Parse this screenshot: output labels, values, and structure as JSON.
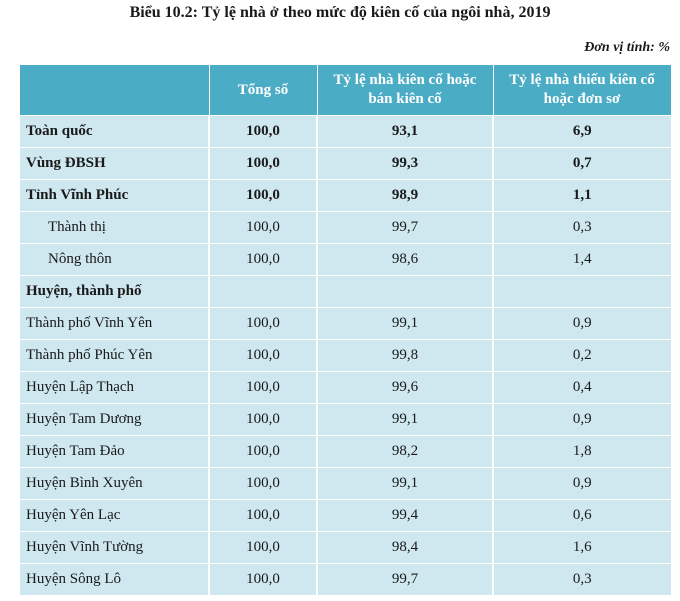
{
  "caption": "Biểu 10.2: Tỷ lệ nhà ở theo mức độ kiên cố của ngôi nhà, 2019",
  "unit": "Đơn vị tính: %",
  "columns": [
    "",
    "Tổng số",
    "Tỷ lệ nhà kiên cố hoặc bán kiên cố",
    "Tỷ lệ nhà thiếu kiên cố hoặc đơn sơ"
  ],
  "rows": [
    {
      "label": "Toàn quốc",
      "total": "100,0",
      "solid": "93,1",
      "weak": "6,9",
      "bold": true
    },
    {
      "label": "Vùng ĐBSH",
      "total": "100,0",
      "solid": "99,3",
      "weak": "0,7",
      "bold": true
    },
    {
      "label": "Tỉnh Vĩnh Phúc",
      "total": "100,0",
      "solid": "98,9",
      "weak": "1,1",
      "bold": true
    },
    {
      "label": "Thành thị",
      "total": "100,0",
      "solid": "99,7",
      "weak": "0,3",
      "indent": true
    },
    {
      "label": "Nông thôn",
      "total": "100,0",
      "solid": "98,6",
      "weak": "1,4",
      "indent": true
    },
    {
      "label": "Huyện, thành phố",
      "total": "",
      "solid": "",
      "weak": "",
      "bold": true
    },
    {
      "label": "Thành phố Vĩnh Yên",
      "total": "100,0",
      "solid": "99,1",
      "weak": "0,9"
    },
    {
      "label": "Thành phố Phúc Yên",
      "total": "100,0",
      "solid": "99,8",
      "weak": "0,2"
    },
    {
      "label": "Huyện Lập Thạch",
      "total": "100,0",
      "solid": "99,6",
      "weak": "0,4"
    },
    {
      "label": "Huyện Tam Dương",
      "total": "100,0",
      "solid": "99,1",
      "weak": "0,9"
    },
    {
      "label": "Huyện Tam Đảo",
      "total": "100,0",
      "solid": "98,2",
      "weak": "1,8"
    },
    {
      "label": "Huyện Bình Xuyên",
      "total": "100,0",
      "solid": "99,1",
      "weak": "0,9"
    },
    {
      "label": "Huyện Yên Lạc",
      "total": "100,0",
      "solid": "99,4",
      "weak": "0,6"
    },
    {
      "label": "Huyện Vĩnh Tường",
      "total": "100,0",
      "solid": "98,4",
      "weak": "1,6"
    },
    {
      "label": "Huyện Sông Lô",
      "total": "100,0",
      "solid": "99,7",
      "weak": "0,3"
    }
  ]
}
